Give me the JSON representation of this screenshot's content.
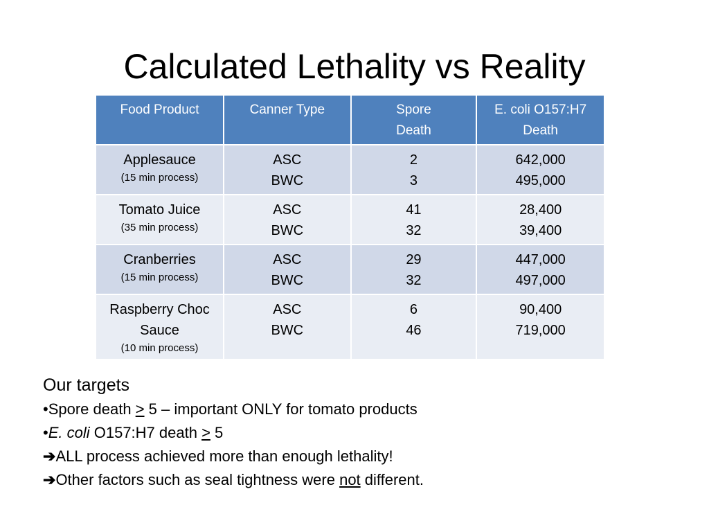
{
  "slide": {
    "title": "Calculated Lethality vs Reality"
  },
  "table": {
    "headers": [
      "Food Product",
      "Canner Type",
      "Spore Death",
      "E. coli O157:H7 Death"
    ],
    "header_lines": [
      [
        "Food Product"
      ],
      [
        "Canner Type"
      ],
      [
        "Spore",
        "Death"
      ],
      [
        "E. coli O157:H7",
        "Death"
      ]
    ],
    "rows": [
      {
        "product": "Applesauce",
        "process": "(15 min process)",
        "canner": [
          "ASC",
          "BWC"
        ],
        "spore": [
          "2",
          "3"
        ],
        "ecoli": [
          "642,000",
          "495,000"
        ]
      },
      {
        "product": "Tomato Juice",
        "process": "(35 min process)",
        "canner": [
          "ASC",
          "BWC"
        ],
        "spore": [
          "41",
          "32"
        ],
        "ecoli": [
          "28,400",
          "39,400"
        ]
      },
      {
        "product": "Cranberries",
        "process": "(15 min process)",
        "canner": [
          "ASC",
          "BWC"
        ],
        "spore": [
          "29",
          "32"
        ],
        "ecoli": [
          "447,000",
          "497,000"
        ]
      },
      {
        "product_lines": [
          "Raspberry Choc",
          "Sauce"
        ],
        "process": "(10 min process)",
        "canner": [
          "ASC",
          "BWC"
        ],
        "spore": [
          "6",
          "46"
        ],
        "ecoli": [
          "90,400",
          "719,000"
        ]
      }
    ]
  },
  "notes": {
    "heading": "Our targets",
    "bullet1": {
      "marker": "•",
      "pre": "Spore death ",
      "underlined": ">",
      "post": " 5 – important ONLY for tomato products"
    },
    "bullet2": {
      "marker": "•",
      "italic": "E. coli",
      "pre": " O157:H7 death ",
      "underlined": ">",
      "post": " 5"
    },
    "arrow1": {
      "arrow": "➔",
      "text": "ALL process achieved more than enough lethality!"
    },
    "arrow2": {
      "arrow": "➔",
      "pre": "Other factors such as seal tightness were ",
      "underlined": "not",
      "post": " different."
    }
  },
  "colors": {
    "header_bg": "#4f81bd",
    "row_odd_bg": "#d0d8e8",
    "row_even_bg": "#e9edf4"
  }
}
